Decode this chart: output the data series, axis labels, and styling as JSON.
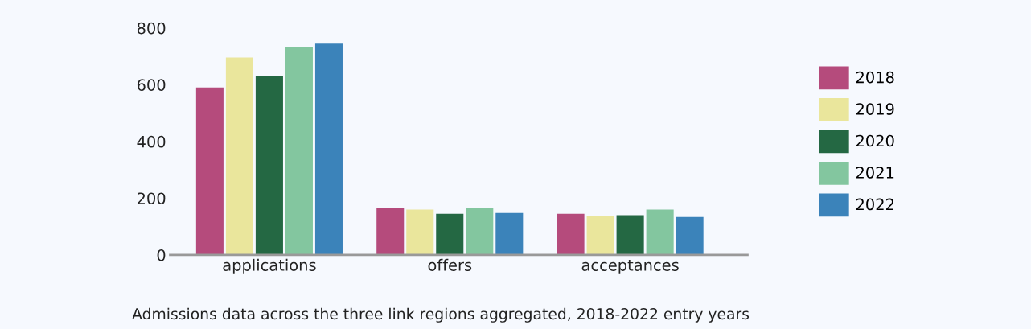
{
  "chart_data": {
    "type": "bar",
    "categories": [
      "applications",
      "offers",
      "acceptances"
    ],
    "series": [
      {
        "name": "2018",
        "color": "#b54b7c",
        "values": [
          590,
          165,
          145
        ]
      },
      {
        "name": "2019",
        "color": "#eae69c",
        "values": [
          696,
          160,
          137
        ]
      },
      {
        "name": "2020",
        "color": "#246843",
        "values": [
          631,
          145,
          140
        ]
      },
      {
        "name": "2021",
        "color": "#83c69f",
        "values": [
          734,
          165,
          160
        ]
      },
      {
        "name": "2022",
        "color": "#3b83ba",
        "values": [
          745,
          148,
          134
        ]
      }
    ],
    "ylim": [
      0,
      800
    ],
    "yticks": [
      0,
      200,
      400,
      600,
      800
    ],
    "grid": false,
    "legend": "right",
    "annotations": [
      "Admissions data across the three link regions aggregated, 2018-2022 entry years"
    ]
  }
}
